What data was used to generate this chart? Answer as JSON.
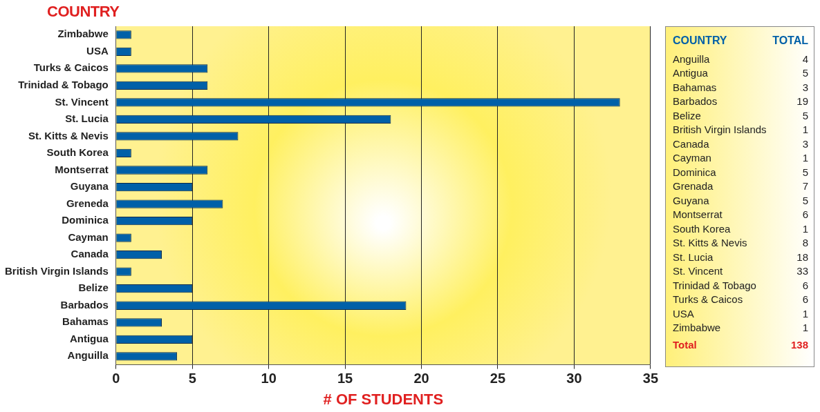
{
  "chart_data": [
    {
      "type": "bar",
      "orientation": "horizontal",
      "ylabel": "COUNTRY",
      "xlabel": "# OF STUDENTS",
      "categories": [
        "Zimbabwe",
        "USA",
        "Turks & Caicos",
        "Trinidad & Tobago",
        "St. Vincent",
        "St. Lucia",
        "St. Kitts & Nevis",
        "South Korea",
        "Montserrat",
        "Guyana",
        "Greneda",
        "Dominica",
        "Cayman",
        "Canada",
        "British Virgin Islands",
        "Belize",
        "Barbados",
        "Bahamas",
        "Antigua",
        "Anguilla"
      ],
      "values": [
        1,
        1,
        6,
        6,
        33,
        18,
        8,
        1,
        6,
        5,
        7,
        5,
        1,
        3,
        1,
        5,
        19,
        3,
        5,
        4
      ],
      "color": "#0060a8",
      "xlim": [
        0,
        35
      ],
      "xticks": [
        0,
        5,
        10,
        15,
        20,
        25,
        30,
        35
      ],
      "grid": "x",
      "legend": false
    },
    {
      "type": "other",
      "annotations": [
        "COUNTRY",
        "TOTAL",
        "Anguilla",
        "4",
        "Antigua",
        "5",
        "Bahamas",
        "3",
        "Barbados",
        "19",
        "Belize",
        "5",
        "British Virgin Islands",
        "1",
        "Canada",
        "3",
        "Cayman",
        "1",
        "Dominica",
        "5",
        "Grenada",
        "7",
        "Guyana",
        "5",
        "Montserrat",
        "6",
        "South Korea",
        "1",
        "St. Kitts & Nevis",
        "8",
        "St. Lucia",
        "18",
        "St. Vincent",
        "33",
        "Trinidad & Tobago",
        "6",
        "Turks & Caicos",
        "6",
        "USA",
        "1",
        "Zimbabwe",
        "1",
        "Total",
        "138"
      ]
    }
  ]
}
